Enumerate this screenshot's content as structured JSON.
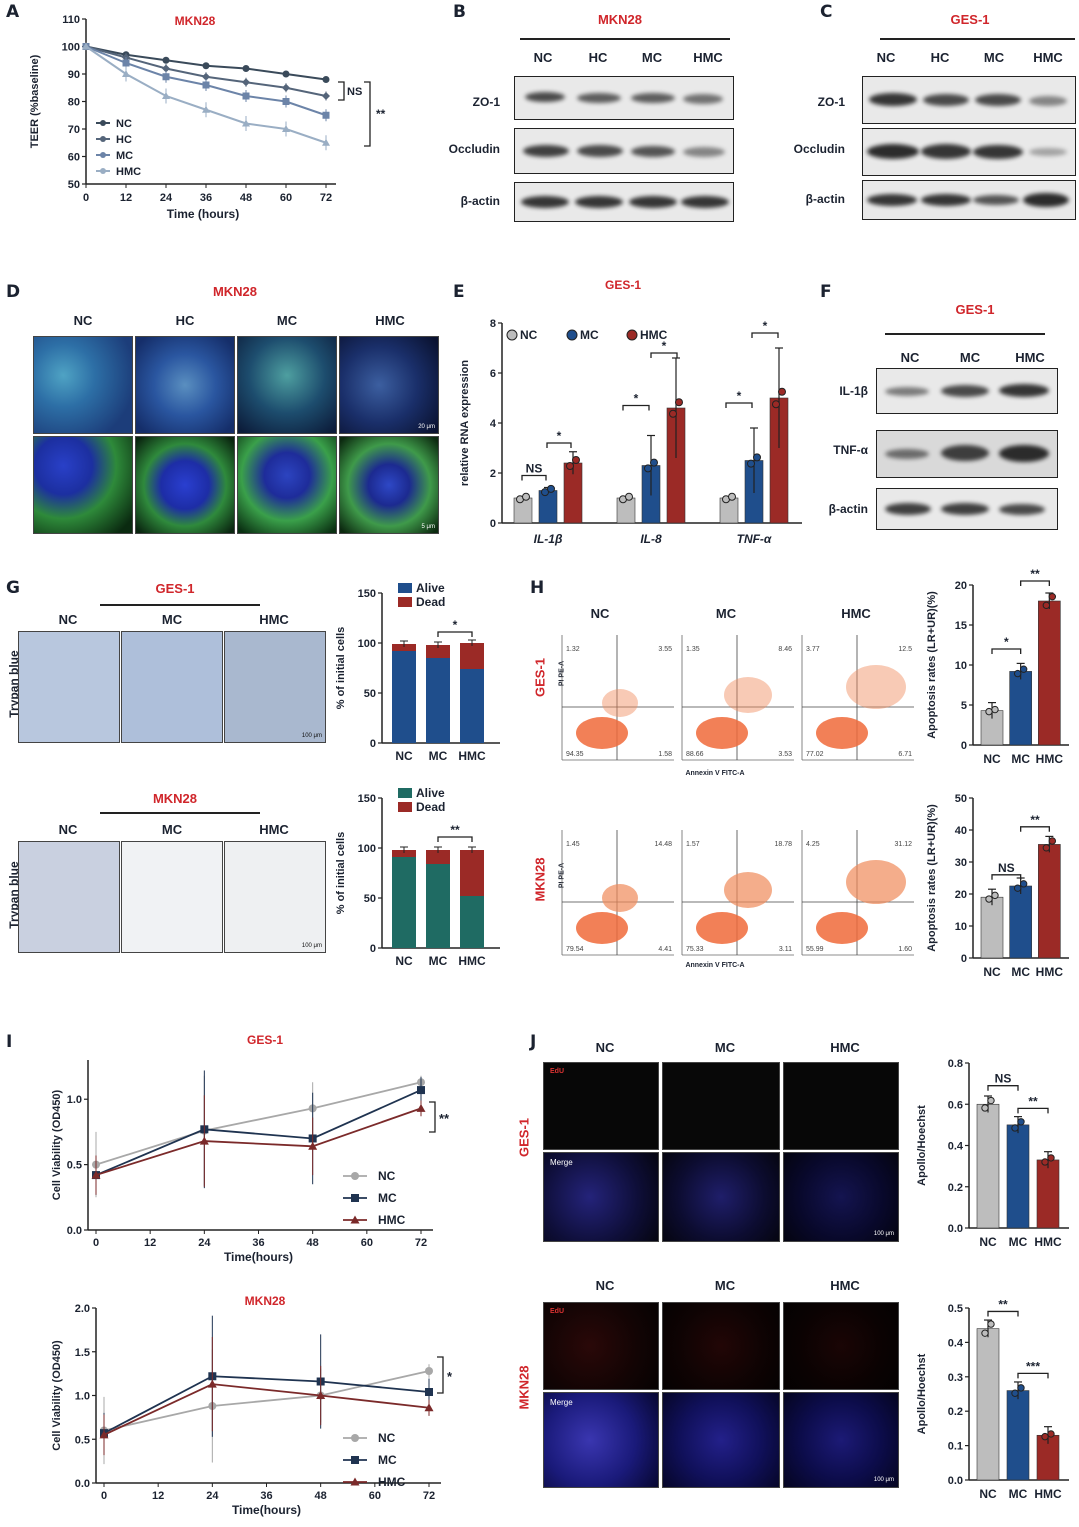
{
  "panels": [
    "A",
    "B",
    "C",
    "D",
    "E",
    "F",
    "G",
    "H",
    "I",
    "J"
  ],
  "groups": {
    "nc": "NC",
    "hc": "HC",
    "mc": "MC",
    "hmc": "HMC"
  },
  "cells": {
    "mkn28": "MKN28",
    "ges1": "GES-1"
  },
  "blot_labels": {
    "zo1": "ZO-1",
    "occludin": "Occludin",
    "bactin": "β-actin",
    "il1b": "IL-1β",
    "tnfa": "TNF-α"
  },
  "stain_labels": {
    "trypan": "Trypan blue",
    "edu": "EdU",
    "merge": "Merge"
  },
  "scale": {
    "um20": "20 μm",
    "um5": "5 μm",
    "um100": "100 μm"
  },
  "flow": {
    "pi": "PI PE-A",
    "annexin": "Annexin V FITC-A",
    "ges1": [
      [
        "1.32",
        "3.55",
        "94.35",
        "1.58"
      ],
      [
        "1.35",
        "8.46",
        "88.66",
        "3.53"
      ],
      [
        "3.77",
        "12.5",
        "77.02",
        "6.71"
      ]
    ],
    "mkn28": [
      [
        "1.45",
        "14.48",
        "79.54",
        "4.41"
      ],
      [
        "1.57",
        "18.78",
        "75.33",
        "3.11"
      ],
      [
        "4.25",
        "31.12",
        "55.99",
        "1.60"
      ]
    ]
  },
  "sig": {
    "ns": "NS",
    "one": "*",
    "two": "**",
    "three": "***"
  },
  "colors": {
    "nc": "#bdbdbd",
    "mc": "#1f4e8c",
    "hmc": "#9b2a26",
    "teer_nc": "#3a4a5a",
    "teer_hc": "#55657a",
    "teer_mc": "#6c84a8",
    "teer_hmc": "#9aaec4",
    "title_red": "#d0262b"
  },
  "chart_data": [
    {
      "id": "A",
      "type": "line",
      "title": "MKN28",
      "xlabel": "Time (hours)",
      "ylabel": "TEER (%baseline)",
      "x": [
        0,
        12,
        24,
        36,
        48,
        60,
        72
      ],
      "xticks": [
        "0",
        "12",
        "24",
        "36",
        "48",
        "60",
        "72"
      ],
      "yticks": [
        "50",
        "60",
        "70",
        "80",
        "90",
        "100",
        "110"
      ],
      "ylim": [
        50,
        110
      ],
      "series": [
        {
          "name": "NC",
          "values": [
            100,
            97,
            95,
            93,
            92,
            90,
            88
          ]
        },
        {
          "name": "HC",
          "values": [
            100,
            96,
            92,
            89,
            87,
            85,
            82
          ]
        },
        {
          "name": "MC",
          "values": [
            100,
            94,
            89,
            86,
            82,
            80,
            75
          ]
        },
        {
          "name": "HMC",
          "values": [
            100,
            90,
            82,
            77,
            72,
            70,
            65
          ]
        }
      ]
    },
    {
      "id": "E",
      "type": "bar",
      "title": "GES-1",
      "ylabel": "relative RNA expression",
      "categories": [
        "IL-1β",
        "IL-8",
        "TNF-α"
      ],
      "yticks": [
        "0",
        "2",
        "4",
        "6",
        "8"
      ],
      "ylim": [
        0,
        8
      ],
      "series": [
        {
          "name": "NC",
          "values": [
            1.0,
            1.0,
            1.0
          ]
        },
        {
          "name": "MC",
          "values": [
            1.3,
            2.3,
            2.5
          ]
        },
        {
          "name": "HMC",
          "values": [
            2.4,
            4.6,
            5.0
          ]
        }
      ]
    },
    {
      "id": "G1",
      "type": "bar",
      "ylabel": "% of initial cells",
      "categories": [
        "NC",
        "MC",
        "HMC"
      ],
      "yticks": [
        "0",
        "50",
        "100",
        "150"
      ],
      "ylim": [
        0,
        150
      ],
      "series": [
        {
          "name": "Alive",
          "values": [
            92,
            85,
            74
          ]
        },
        {
          "name": "Dead",
          "values": [
            7,
            13,
            26
          ]
        }
      ]
    },
    {
      "id": "G2",
      "type": "bar",
      "ylabel": "% of initial cells",
      "categories": [
        "NC",
        "MC",
        "HMC"
      ],
      "yticks": [
        "0",
        "50",
        "100",
        "150"
      ],
      "ylim": [
        0,
        150
      ],
      "series": [
        {
          "name": "Alive",
          "values": [
            91,
            84,
            52
          ]
        },
        {
          "name": "Dead",
          "values": [
            7,
            14,
            46
          ]
        }
      ]
    },
    {
      "id": "H1",
      "type": "bar",
      "ylabel": "Apoptosis rates (LR+UR)(%)",
      "categories": [
        "NC",
        "MC",
        "HMC"
      ],
      "yticks": [
        "0",
        "5",
        "10",
        "15",
        "20"
      ],
      "ylim": [
        0,
        20
      ],
      "values": [
        4.3,
        9.2,
        18.0
      ]
    },
    {
      "id": "H2",
      "type": "bar",
      "ylabel": "Apoptosis rates (LR+UR)(%)",
      "categories": [
        "NC",
        "MC",
        "HMC"
      ],
      "yticks": [
        "0",
        "10",
        "20",
        "30",
        "40",
        "50"
      ],
      "ylim": [
        0,
        50
      ],
      "values": [
        19,
        22.5,
        35.5
      ]
    },
    {
      "id": "I1",
      "type": "line",
      "title": "GES-1",
      "xlabel": "Time(hours)",
      "ylabel": "Cell Viability (OD450)",
      "x": [
        0,
        24,
        48,
        72
      ],
      "xticks": [
        "0",
        "12",
        "24",
        "36",
        "48",
        "60",
        "72"
      ],
      "yticks": [
        "0.0",
        "0.5",
        "1.0"
      ],
      "ylim": [
        0,
        1.3
      ],
      "series": [
        {
          "name": "NC",
          "values": [
            0.5,
            0.76,
            0.93,
            1.13
          ]
        },
        {
          "name": "MC",
          "values": [
            0.42,
            0.77,
            0.7,
            1.07
          ]
        },
        {
          "name": "HMC",
          "values": [
            0.42,
            0.68,
            0.64,
            0.93
          ]
        }
      ]
    },
    {
      "id": "I2",
      "type": "line",
      "title": "MKN28",
      "xlabel": "Time(hours)",
      "ylabel": "Cell Viability (OD450)",
      "x": [
        0,
        24,
        48,
        72
      ],
      "xticks": [
        "0",
        "12",
        "24",
        "36",
        "48",
        "60",
        "72"
      ],
      "yticks": [
        "0.0",
        "0.5",
        "1.0",
        "1.5",
        "2.0"
      ],
      "ylim": [
        0,
        2
      ],
      "series": [
        {
          "name": "NC",
          "values": [
            0.6,
            0.88,
            1.0,
            1.28
          ]
        },
        {
          "name": "MC",
          "values": [
            0.57,
            1.22,
            1.16,
            1.04
          ]
        },
        {
          "name": "HMC",
          "values": [
            0.55,
            1.13,
            1.0,
            0.86
          ]
        }
      ]
    },
    {
      "id": "J1",
      "type": "bar",
      "ylabel": "Apollo/Hoechst",
      "categories": [
        "NC",
        "MC",
        "HMC"
      ],
      "yticks": [
        "0.0",
        "0.2",
        "0.4",
        "0.6",
        "0.8"
      ],
      "ylim": [
        0,
        0.8
      ],
      "values": [
        0.6,
        0.5,
        0.33
      ]
    },
    {
      "id": "J2",
      "type": "bar",
      "ylabel": "Apollo/Hoechst",
      "categories": [
        "NC",
        "MC",
        "HMC"
      ],
      "yticks": [
        "0.0",
        "0.1",
        "0.2",
        "0.3",
        "0.4",
        "0.5"
      ],
      "ylim": [
        0,
        0.5
      ],
      "values": [
        0.44,
        0.26,
        0.13
      ]
    }
  ]
}
